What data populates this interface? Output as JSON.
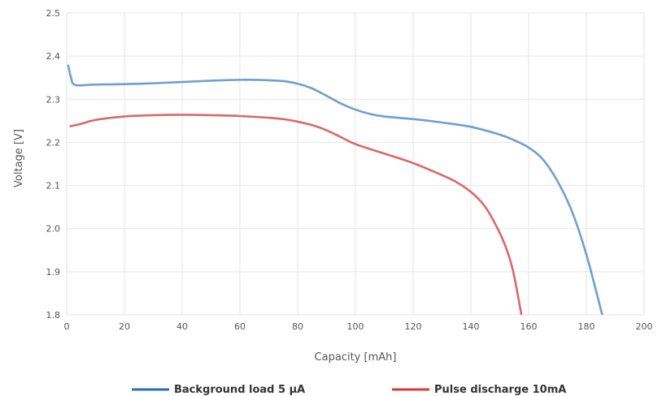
{
  "chart_data": {
    "type": "line",
    "title": "",
    "xlabel": "Capacity [mAh]",
    "ylabel": "Voltage [V]",
    "xlim": [
      0,
      200
    ],
    "ylim": [
      1.8,
      2.5
    ],
    "xticks": [
      0,
      20,
      40,
      60,
      80,
      100,
      120,
      140,
      160,
      180,
      200
    ],
    "yticks": [
      1.8,
      1.9,
      2.0,
      2.1,
      2.2,
      2.3,
      2.4,
      2.5
    ],
    "grid": true,
    "legend_position": "bottom",
    "series": [
      {
        "name": "Background load 5 µA",
        "color": "#6f9fd0",
        "legend_color": "#2a6fb5",
        "points": [
          [
            0.5,
            2.38
          ],
          [
            1.5,
            2.35
          ],
          [
            3,
            2.333
          ],
          [
            10,
            2.334
          ],
          [
            20,
            2.335
          ],
          [
            30,
            2.337
          ],
          [
            40,
            2.34
          ],
          [
            50,
            2.343
          ],
          [
            60,
            2.345
          ],
          [
            70,
            2.344
          ],
          [
            75,
            2.342
          ],
          [
            80,
            2.336
          ],
          [
            85,
            2.325
          ],
          [
            90,
            2.308
          ],
          [
            95,
            2.29
          ],
          [
            100,
            2.276
          ],
          [
            105,
            2.266
          ],
          [
            110,
            2.26
          ],
          [
            120,
            2.254
          ],
          [
            130,
            2.246
          ],
          [
            140,
            2.236
          ],
          [
            150,
            2.218
          ],
          [
            155,
            2.205
          ],
          [
            160,
            2.188
          ],
          [
            165,
            2.16
          ],
          [
            170,
            2.11
          ],
          [
            175,
            2.04
          ],
          [
            180,
            1.94
          ],
          [
            185.5,
            1.8
          ]
        ]
      },
      {
        "name": "Pulse discharge 10mA",
        "color": "#d9696a",
        "legend_color": "#d43d3a",
        "points": [
          [
            1,
            2.237
          ],
          [
            5,
            2.243
          ],
          [
            10,
            2.252
          ],
          [
            20,
            2.26
          ],
          [
            30,
            2.263
          ],
          [
            40,
            2.264
          ],
          [
            50,
            2.263
          ],
          [
            60,
            2.261
          ],
          [
            70,
            2.257
          ],
          [
            75,
            2.254
          ],
          [
            80,
            2.248
          ],
          [
            85,
            2.24
          ],
          [
            90,
            2.228
          ],
          [
            95,
            2.212
          ],
          [
            100,
            2.196
          ],
          [
            110,
            2.174
          ],
          [
            120,
            2.152
          ],
          [
            130,
            2.124
          ],
          [
            135,
            2.108
          ],
          [
            140,
            2.085
          ],
          [
            145,
            2.05
          ],
          [
            150,
            1.99
          ],
          [
            153,
            1.94
          ],
          [
            155,
            1.89
          ],
          [
            157.5,
            1.8
          ]
        ]
      }
    ]
  }
}
